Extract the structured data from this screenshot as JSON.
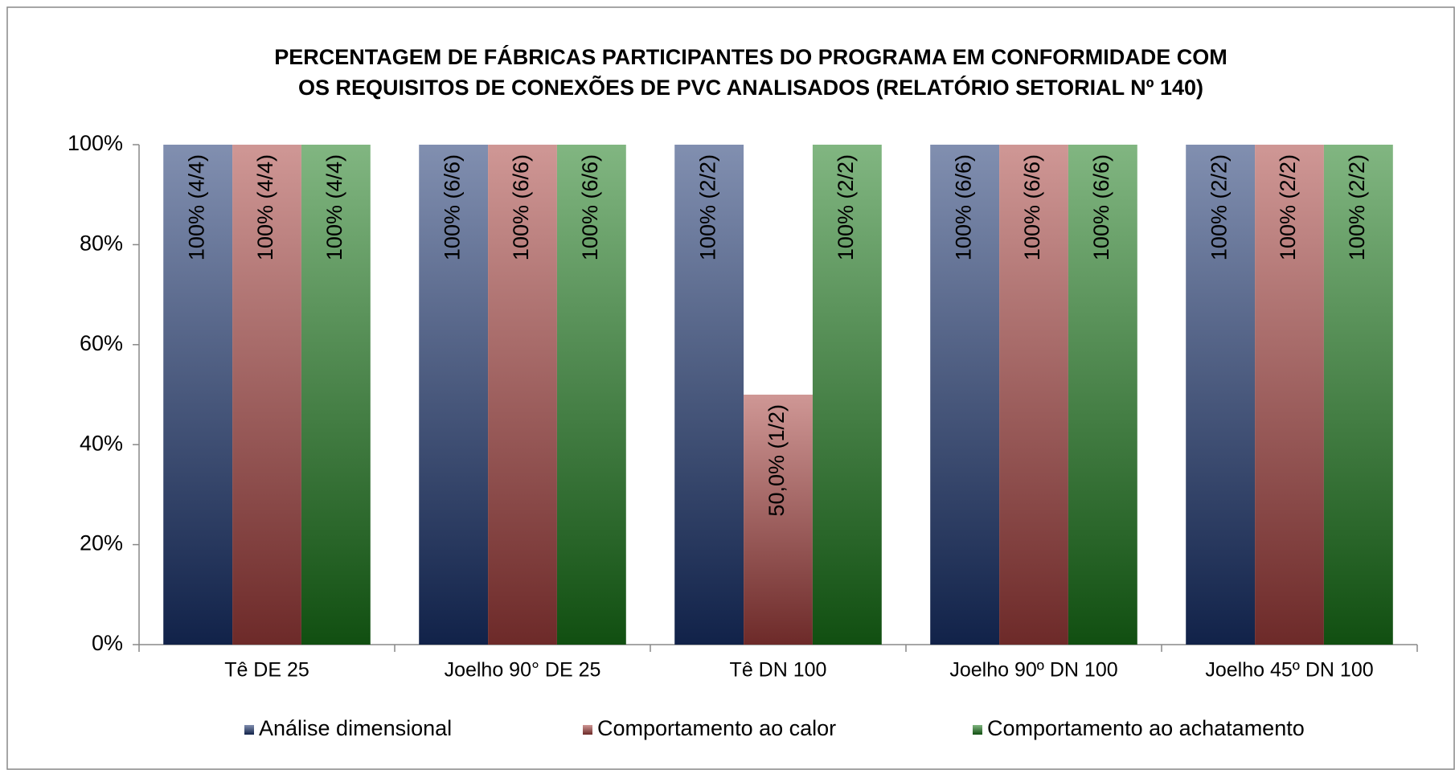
{
  "chart_data": {
    "type": "bar",
    "title": [
      "PERCENTAGEM DE FÁBRICAS PARTICIPANTES DO PROGRAMA EM CONFORMIDADE COM",
      "OS REQUISITOS DE CONEXÕES DE PVC ANALISADOS (RELATÓRIO SETORIAL Nº 140)"
    ],
    "categories": [
      "Tê DE 25",
      "Joelho 90° DE 25",
      "Tê DN 100",
      "Joelho 90º DN 100",
      "Joelho 45º DN 100"
    ],
    "series": [
      {
        "name": "Análise dimensional",
        "color": "#1a3470",
        "values": [
          100,
          100,
          100,
          100,
          100
        ],
        "value_labels": [
          "100% (4/4)",
          "100% (6/6)",
          "100% (2/2)",
          "100% (6/6)",
          "100% (2/2)"
        ]
      },
      {
        "name": "Comportamento ao calor",
        "color": "#a8413f",
        "values": [
          100,
          100,
          50,
          100,
          100
        ],
        "value_labels": [
          "100% (4/4)",
          "100% (6/6)",
          "50,0% (1/2)",
          "100% (6/6)",
          "100% (2/2)"
        ]
      },
      {
        "name": "Comportamento ao achatamento",
        "color": "#1a7a1a",
        "values": [
          100,
          100,
          100,
          100,
          100
        ],
        "value_labels": [
          "100% (4/4)",
          "100% (6/6)",
          "100% (2/2)",
          "100% (6/6)",
          "100% (2/2)"
        ]
      }
    ],
    "ylim": [
      0,
      100
    ],
    "yticks": [
      {
        "value": 0,
        "label": "0%"
      },
      {
        "value": 20,
        "label": "20%"
      },
      {
        "value": 40,
        "label": "40%"
      },
      {
        "value": 60,
        "label": "60%"
      },
      {
        "value": 80,
        "label": "80%"
      },
      {
        "value": 100,
        "label": "100%"
      }
    ],
    "legend": "bottom"
  }
}
